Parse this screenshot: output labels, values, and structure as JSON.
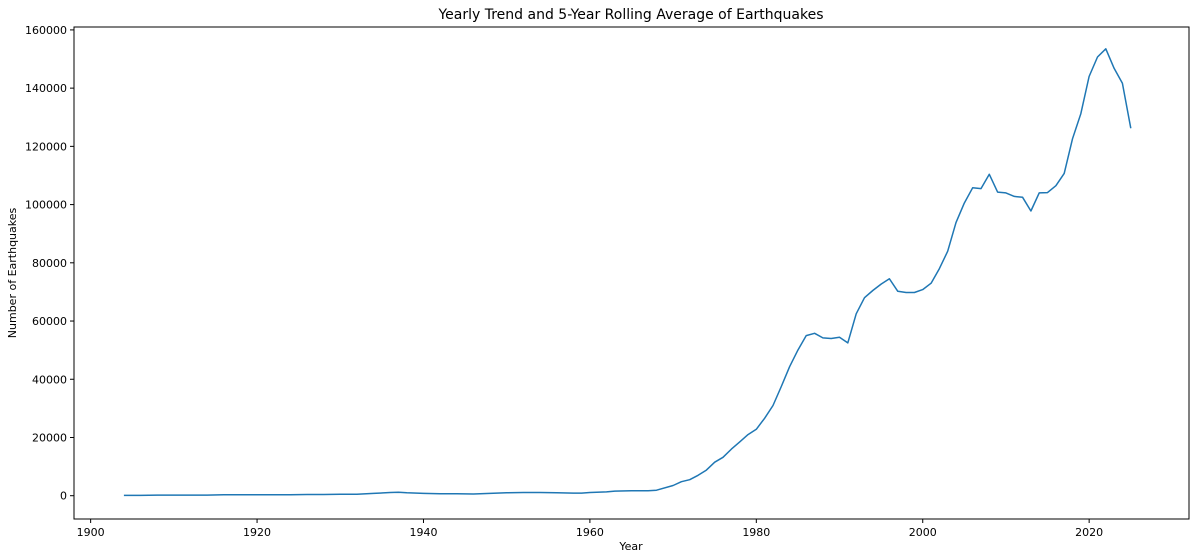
{
  "chart_data": {
    "type": "line",
    "title": "Yearly Trend and 5-Year Rolling Average of Earthquakes",
    "xlabel": "Year",
    "ylabel": "Number of Earthquakes",
    "xlim": [
      1898,
      2032
    ],
    "ylim": [
      -8000,
      161000
    ],
    "xticks": [
      1900,
      1920,
      1940,
      1960,
      1980,
      2000,
      2020
    ],
    "yticks": [
      0,
      20000,
      40000,
      60000,
      80000,
      100000,
      120000,
      140000,
      160000
    ],
    "grid": false,
    "line_color": "#1f77b4",
    "series": [
      {
        "x": [
          1904,
          1906,
          1908,
          1910,
          1912,
          1914,
          1916,
          1918,
          1920,
          1922,
          1924,
          1926,
          1928,
          1930,
          1932,
          1934,
          1936,
          1937,
          1938,
          1940,
          1942,
          1944,
          1946,
          1948,
          1950,
          1952,
          1954,
          1956,
          1958,
          1959,
          1960,
          1962,
          1963,
          1965,
          1967,
          1968,
          1970,
          1971,
          1972,
          1973,
          1974,
          1975,
          1976,
          1977,
          1978,
          1979,
          1980,
          1981,
          1982,
          1983,
          1984,
          1985,
          1986,
          1987,
          1988,
          1989,
          1990,
          1991,
          1992,
          1993,
          1994,
          1995,
          1996,
          1997,
          1998,
          1999,
          2000,
          2001,
          2002,
          2003,
          2004,
          2005,
          2006,
          2007,
          2008,
          2009,
          2010,
          2011,
          2012,
          2013,
          2014,
          2015,
          2016,
          2017,
          2018,
          2019,
          2020,
          2021,
          2022,
          2023,
          2024,
          2025
        ],
        "y": [
          100,
          100,
          200,
          200,
          200,
          200,
          300,
          300,
          300,
          300,
          300,
          400,
          400,
          500,
          500,
          800,
          1100,
          1200,
          1000,
          800,
          700,
          700,
          600,
          800,
          1000,
          1100,
          1100,
          1000,
          900,
          900,
          1100,
          1300,
          1600,
          1700,
          1700,
          1900,
          3500,
          4800,
          5500,
          7000,
          8800,
          11500,
          13200,
          16000,
          18500,
          21000,
          22800,
          26600,
          31000,
          37500,
          44300,
          50000,
          55000,
          55800,
          54200,
          54000,
          54400,
          52500,
          62500,
          68000,
          70500,
          72700,
          74500,
          70200,
          69800,
          69800,
          70800,
          73000,
          78000,
          84000,
          93800,
          100500,
          105800,
          105500,
          110400,
          104300,
          104000,
          102800,
          102500,
          97800,
          104000,
          104100,
          106500,
          110700,
          122600,
          131200,
          144000,
          150700,
          153500,
          146800,
          141700,
          126200
        ]
      }
    ]
  }
}
